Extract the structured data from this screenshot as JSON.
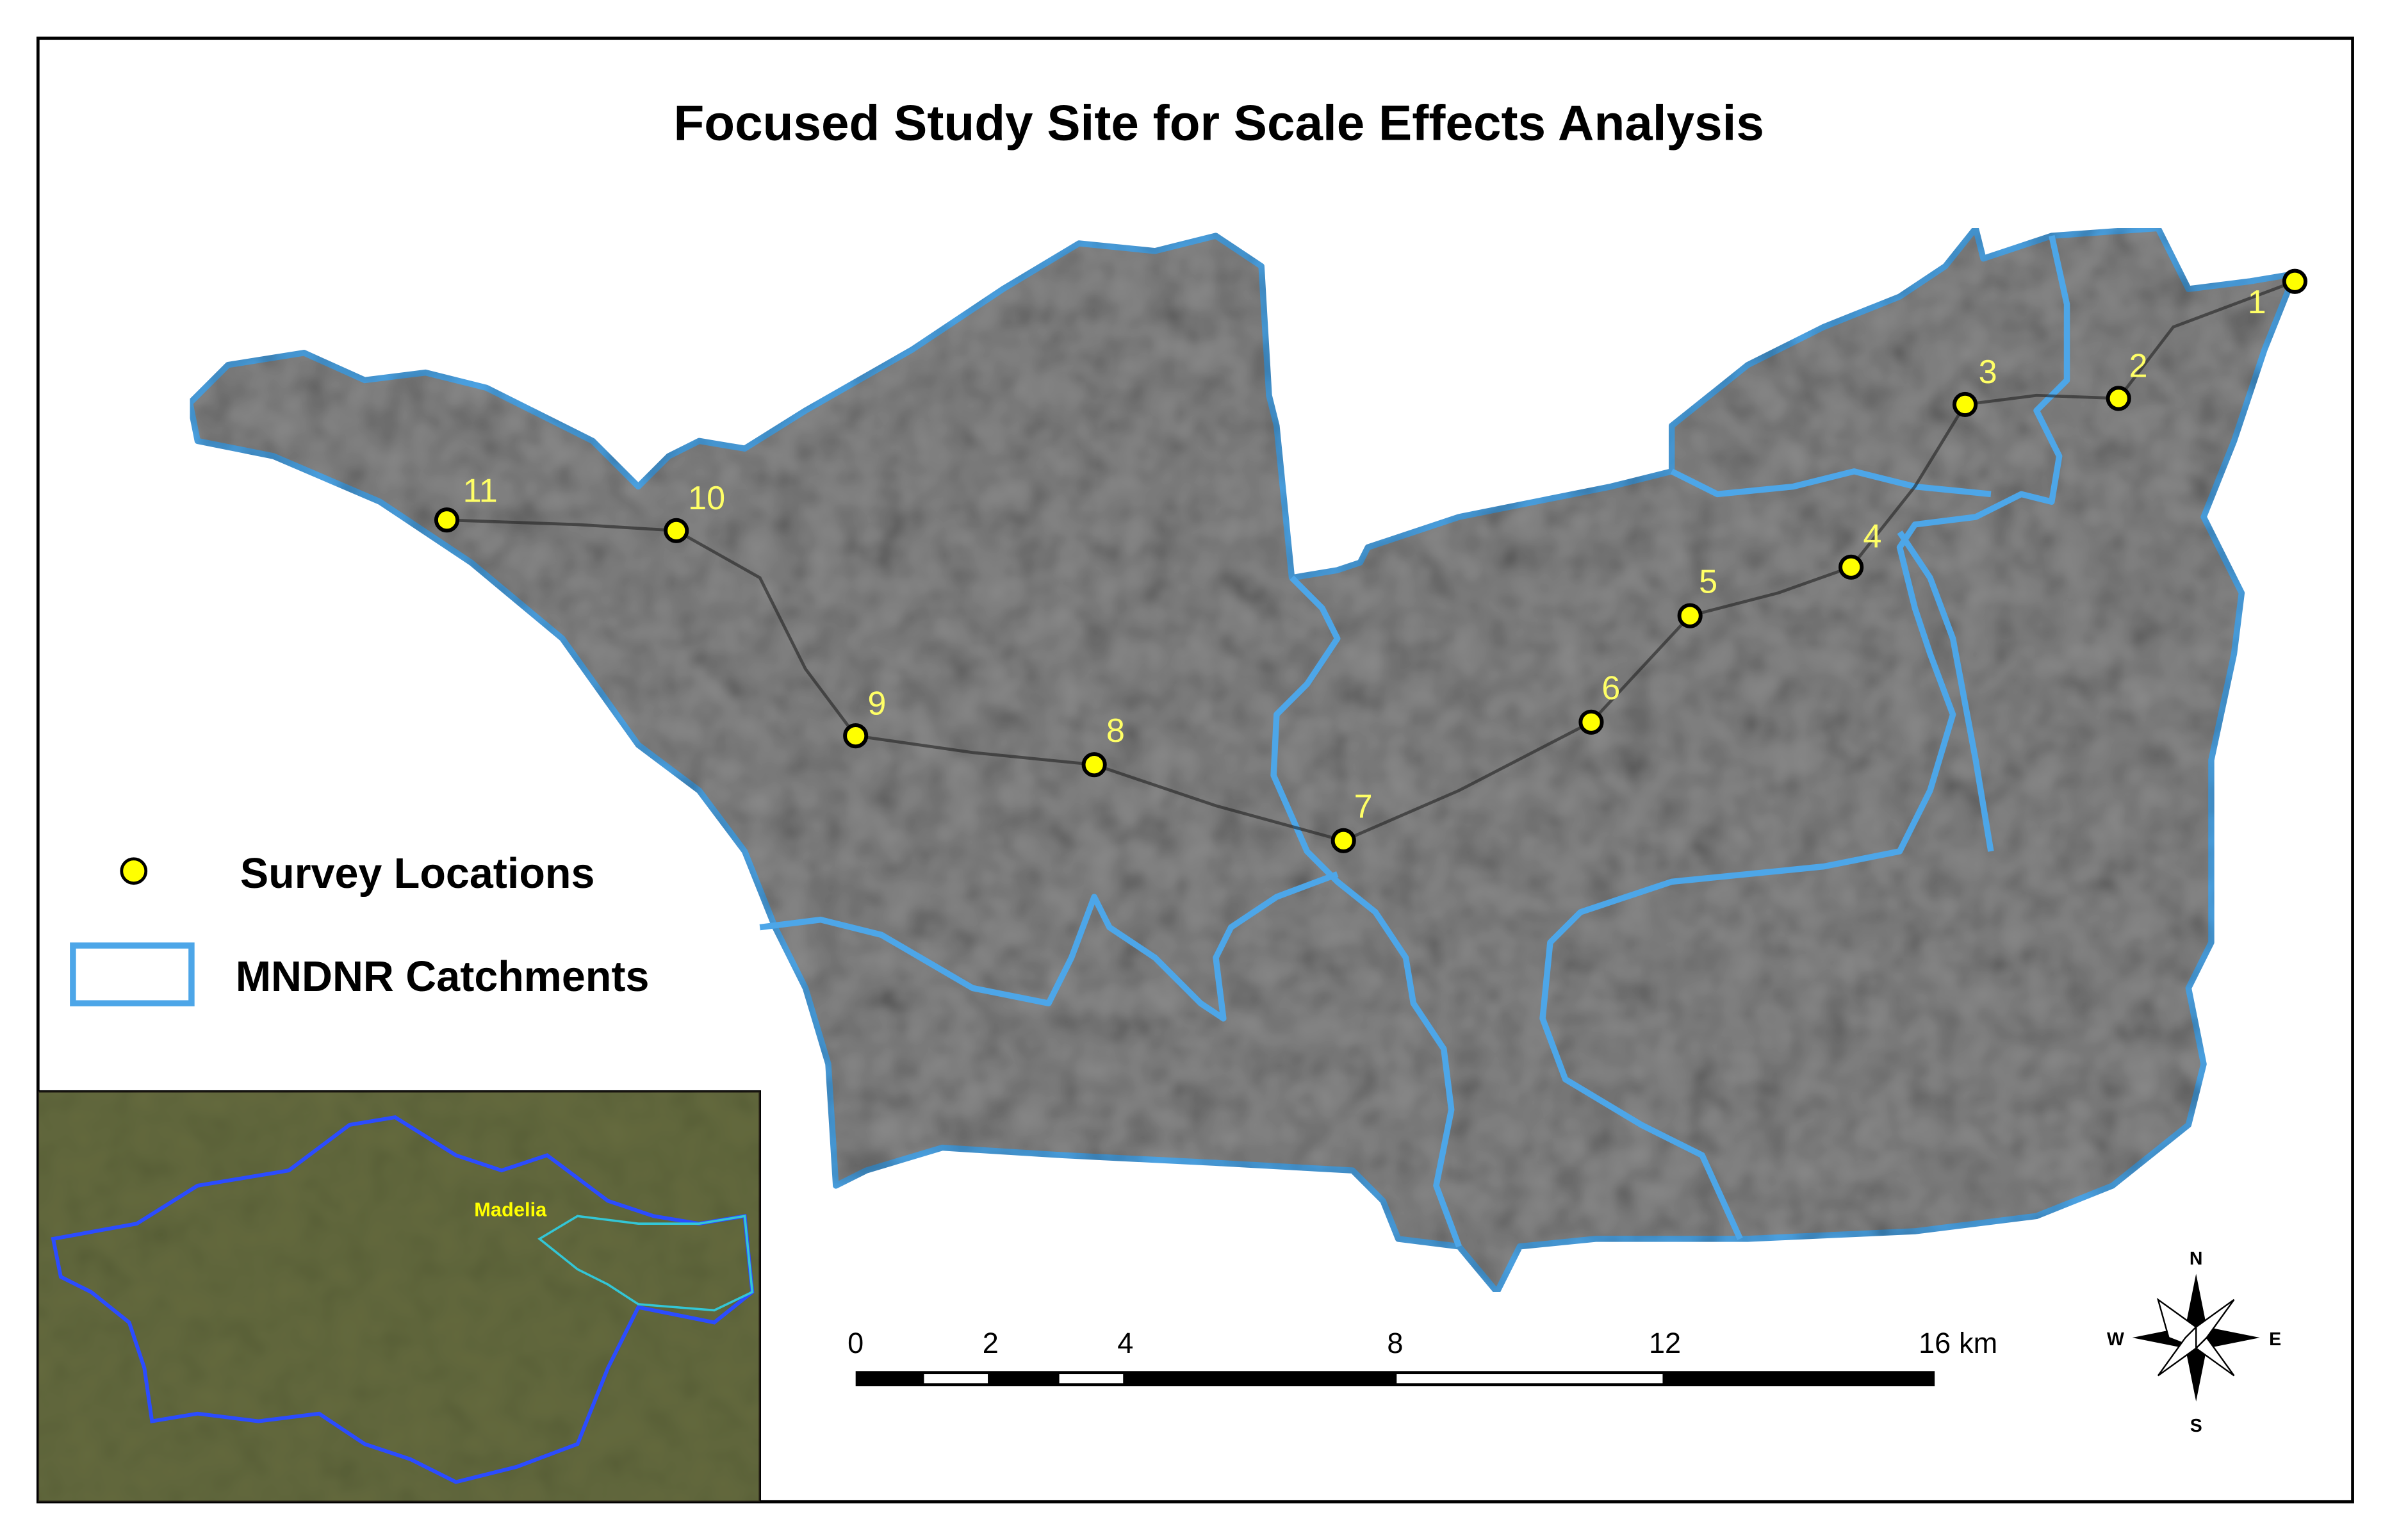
{
  "title": "Focused Study Site for Scale Effects Analysis",
  "legend": {
    "items": [
      {
        "label": "Survey Locations"
      },
      {
        "label": "MNDNR Catchments"
      }
    ]
  },
  "survey_locations": {
    "labels": [
      "1",
      "2",
      "3",
      "4",
      "5",
      "6",
      "7",
      "8",
      "9",
      "10",
      "11"
    ]
  },
  "scale_bar": {
    "ticks": [
      0,
      2,
      4,
      8,
      12,
      16
    ],
    "unit": "km"
  },
  "compass": {
    "north": "N",
    "south": "S",
    "east": "E",
    "west": "W"
  },
  "inset": {
    "label": "Madelia"
  }
}
